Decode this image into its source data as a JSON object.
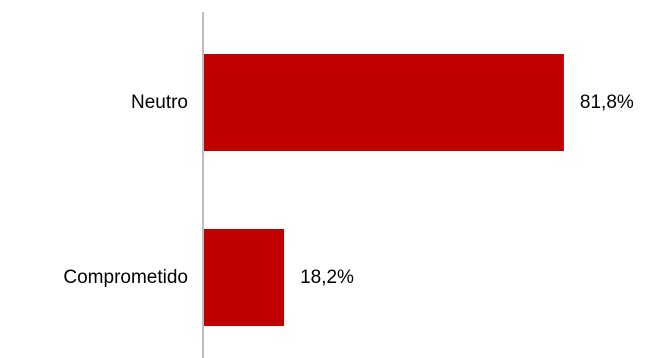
{
  "chart_data": {
    "type": "bar",
    "orientation": "horizontal",
    "categories": [
      "Neutro",
      "Comprometido"
    ],
    "values": [
      81.8,
      18.2
    ],
    "value_labels": [
      "81,8%",
      "18,2%"
    ],
    "unit": "%",
    "xlim": [
      0,
      100
    ],
    "grid": false,
    "legend": "none",
    "title": "",
    "xlabel": "",
    "ylabel": ""
  },
  "colors": {
    "bar": "#C00000",
    "axis": "#BFBFBF",
    "text": "#000000"
  }
}
